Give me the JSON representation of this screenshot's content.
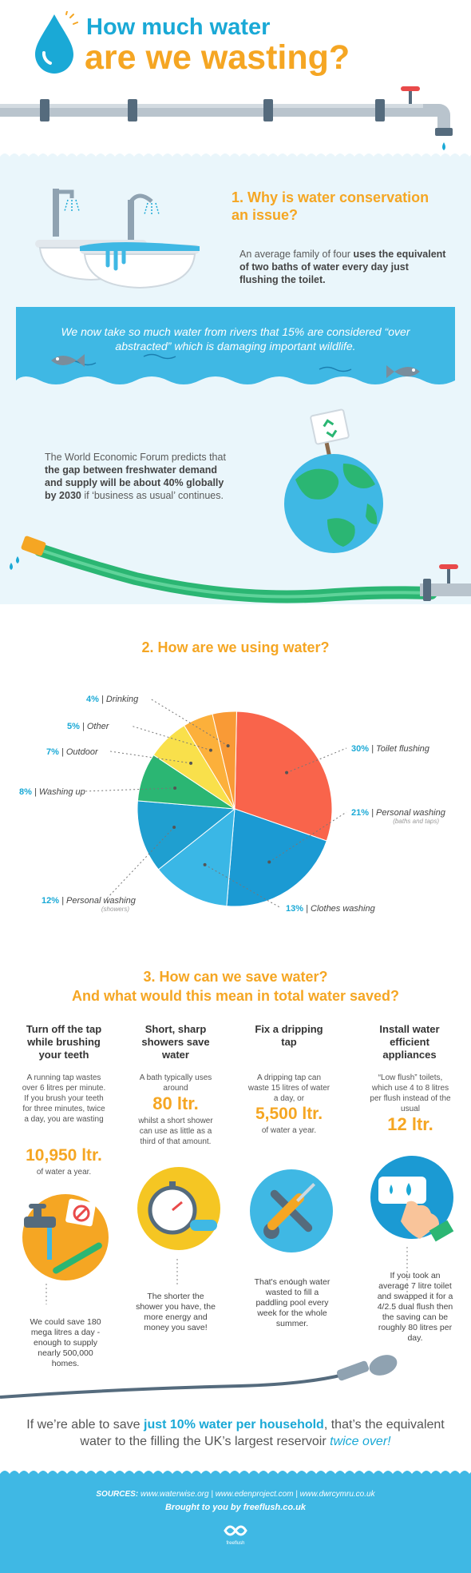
{
  "header": {
    "title_line1": "How much water",
    "title_line2": "are we wasting?"
  },
  "section1": {
    "title_line1": "1. Why is water conservation",
    "title_line2": "an issue?",
    "bath_text_a": "An average family of four ",
    "bath_text_b": "uses the equivalent of two baths of water every day just flushing the toilet.",
    "river_text": "We now take so much water from rivers that 15% are considered “over abstracted” which is damaging important wildlife.",
    "forum_text_a": "The World Economic Forum predicts that ",
    "forum_text_b": "the gap between freshwater demand and supply will be about 40% globally by 2030",
    "forum_text_c": " if ‘business as usual’ continues."
  },
  "section2": {
    "title": "2. How are we using water?",
    "slices": [
      {
        "pct": "30%",
        "label": "Toilet flushing",
        "note": "",
        "value": 30,
        "color": "#f9644b"
      },
      {
        "pct": "21%",
        "label": "Personal washing",
        "note": "(baths and taps)",
        "value": 21,
        "color": "#1b9ad3"
      },
      {
        "pct": "13%",
        "label": "Clothes washing",
        "note": "",
        "value": 13,
        "color": "#3ab7e6"
      },
      {
        "pct": "12%",
        "label": "Personal washing",
        "note": "(showers)",
        "value": 12,
        "color": "#1f9fd0"
      },
      {
        "pct": "8%",
        "label": "Washing up",
        "note": "",
        "value": 8,
        "color": "#2bb673"
      },
      {
        "pct": "7%",
        "label": "Outdoor",
        "note": "",
        "value": 7,
        "color": "#f9e04b"
      },
      {
        "pct": "5%",
        "label": "Other",
        "note": "",
        "value": 5,
        "color": "#fcb03b"
      },
      {
        "pct": "4%",
        "label": "Drinking",
        "note": "",
        "value": 4,
        "color": "#f99a36"
      }
    ]
  },
  "section3": {
    "title_line1": "3. How can we save water?",
    "title_line2": "And what would this mean in total water saved?",
    "tips": [
      {
        "title": "Turn off the tap while brushing your teeth",
        "text": "A running tap wastes over 6 litres per minute. If you brush your teeth for three minutes, twice a day, you are wasting",
        "big": "10,950 ltr.",
        "after": "of water a year.",
        "bottom": "We could save 180 mega litres a day - enough to supply nearly 500,000 homes."
      },
      {
        "title": "Short, sharp showers save water",
        "text": "A bath typically uses around",
        "big": "80 ltr.",
        "after": "whilst a short shower can use as little as a third of that amount.",
        "bottom": "The shorter the shower you have, the more energy and money you save!"
      },
      {
        "title": "Fix a dripping tap",
        "text": "A dripping tap can waste 15 litres of water a day, or",
        "big": "5,500 ltr.",
        "after": "of water a year.",
        "bottom": "That's enough water wasted to fill a paddling pool every week for the whole summer."
      },
      {
        "title": "Install water efficient appliances",
        "text": "“Low flush” toilets, which use 4 to 8 litres per flush instead of the usual",
        "big": "12 ltr.",
        "after": "",
        "bottom": "If you took an average 7 litre toilet and swapped it for a 4/2.5 dual flush then the saving can be roughly 80 litres per day."
      }
    ],
    "closing_a": "If we’re able to save ",
    "closing_b": "just 10% water per household",
    "closing_c": ", that’s the equivalent water to the filling the UK’s largest reservoir ",
    "closing_d": "twice over!"
  },
  "footer": {
    "sources_label": "SOURCES:",
    "sources": "www.waterwise.org | www.edenproject.com | www.dwrcymru.co.uk",
    "brought": "Brought to you by freeflush.co.uk",
    "logo_text": "freeflush"
  },
  "colors": {
    "blue": "#1aa9d6",
    "orange": "#f5a623",
    "light_bg": "#eaf6fb",
    "band": "#3fb8e4"
  }
}
